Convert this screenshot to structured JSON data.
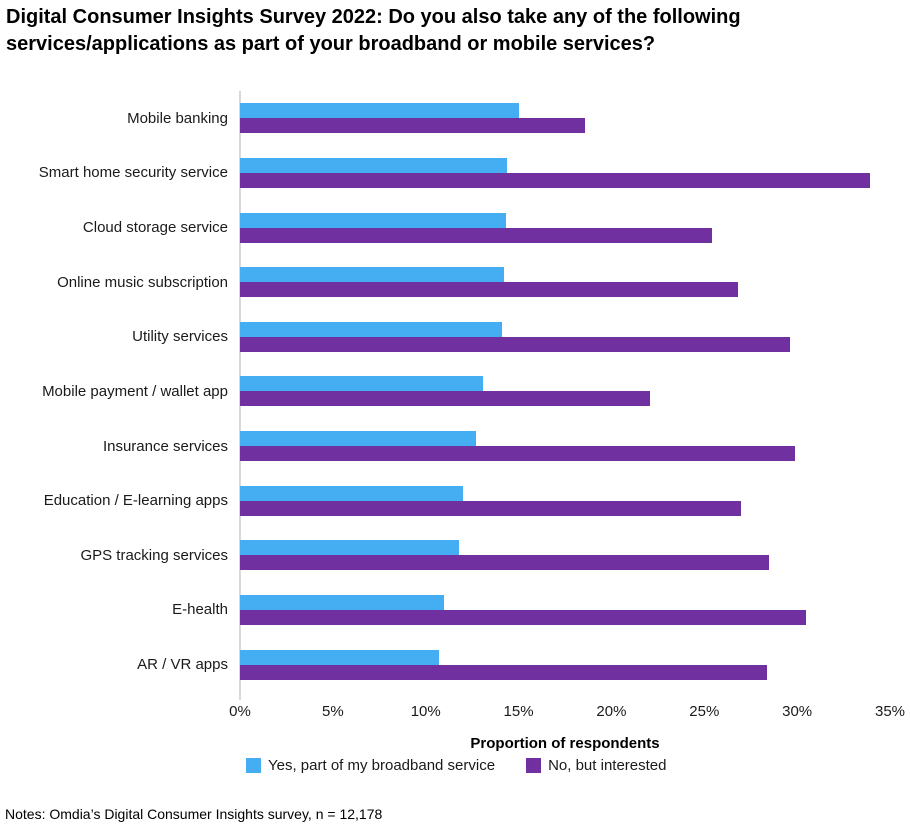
{
  "title_line1": "Digital Consumer Insights Survey 2022: Do you also take any of the following",
  "title_line2": "services/applications as part of your broadband or mobile services?",
  "notes": "Notes: Omdia’s Digital Consumer Insights survey, n = 12,178",
  "colors": {
    "series_yes": "#45adf1",
    "series_no": "#7030a0",
    "axis_line": "#d9d9d9",
    "text": "#000000"
  },
  "chart_data": {
    "type": "bar",
    "orientation": "horizontal",
    "title": "Digital Consumer Insights Survey 2022: Do you also take any of the following services/applications as part of your broadband or mobile services?",
    "xlabel": "Proportion of respondents",
    "ylabel": "",
    "xlim": [
      0,
      35
    ],
    "grid": false,
    "legend_position": "bottom",
    "categories": [
      "Mobile banking",
      "Smart home security service",
      "Cloud storage service",
      "Online music subscription",
      "Utility services",
      "Mobile payment / wallet app",
      "Insurance services",
      "Education / E-learning apps",
      "GPS tracking services",
      "E-health",
      "AR / VR apps"
    ],
    "series": [
      {
        "name": "Yes, part of my broadband service",
        "color_key": "series_yes",
        "values": [
          15.0,
          14.4,
          14.3,
          14.2,
          14.1,
          13.1,
          12.7,
          12.0,
          11.8,
          11.0,
          10.7
        ]
      },
      {
        "name": "No, but interested",
        "color_key": "series_no",
        "values": [
          18.6,
          33.9,
          25.4,
          26.8,
          29.6,
          22.1,
          29.9,
          27.0,
          28.5,
          30.5,
          28.4
        ]
      }
    ],
    "x_ticks": [
      0,
      5,
      10,
      15,
      20,
      25,
      30,
      35
    ],
    "x_tick_labels": [
      "0%",
      "5%",
      "10%",
      "15%",
      "20%",
      "25%",
      "30%",
      "35%"
    ]
  }
}
